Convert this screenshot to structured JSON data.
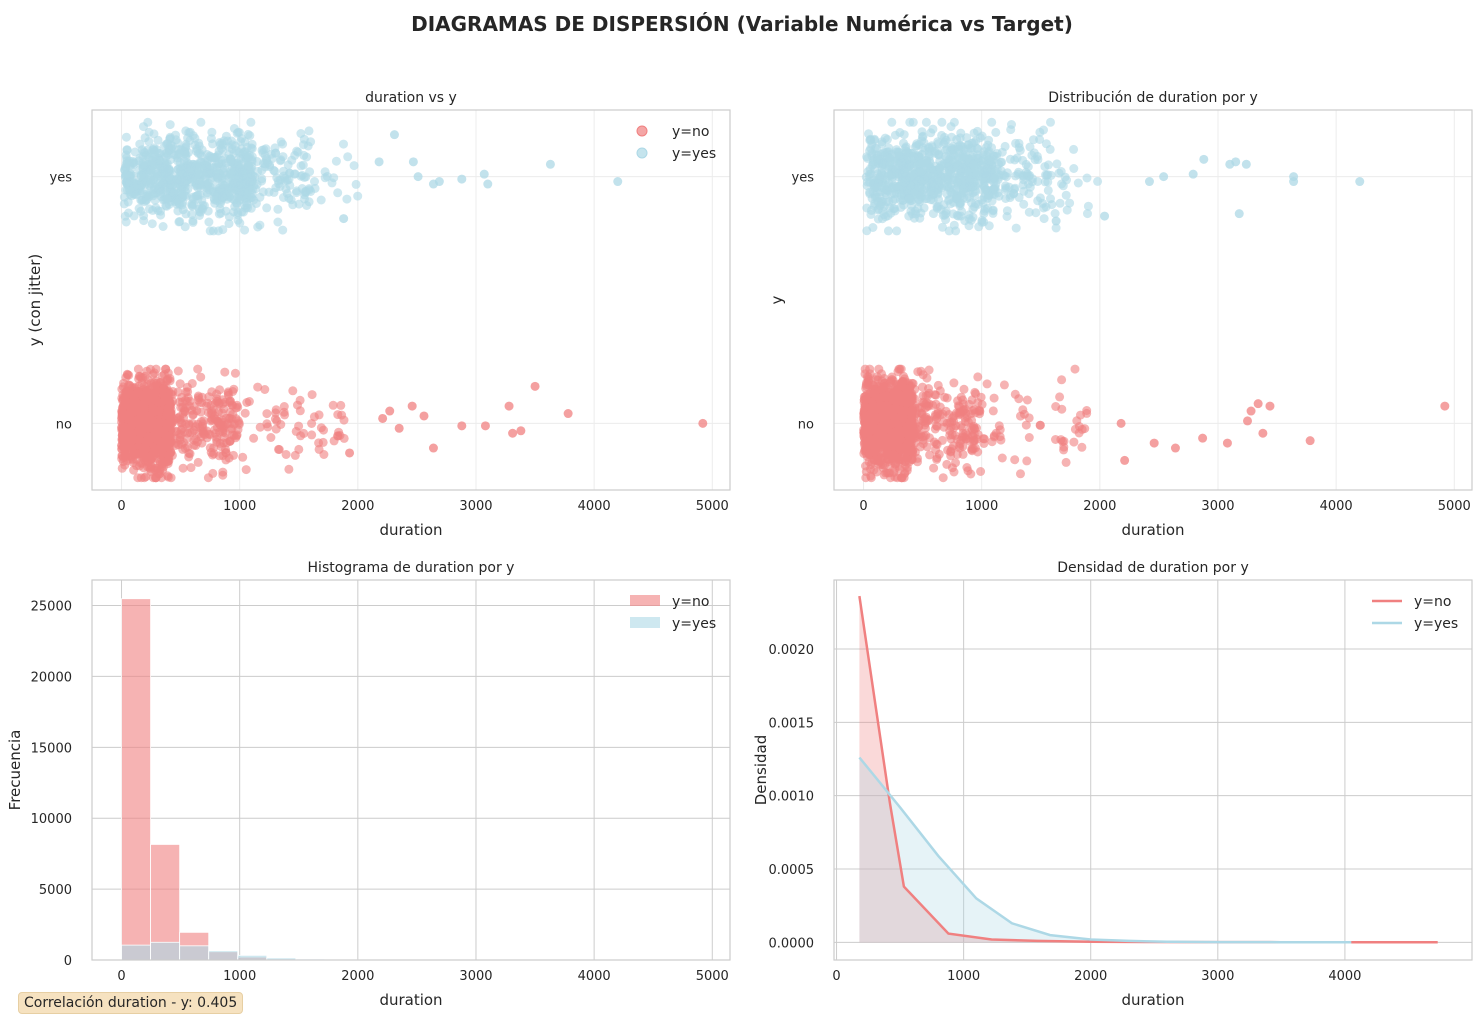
{
  "figure": {
    "title": "DIAGRAMAS DE DISPERSIÓN (Variable Numérica vs Target)",
    "correlation_note": "Correlación duration - y: 0.405"
  },
  "colors": {
    "no": "#f08080",
    "yes": "#add8e6",
    "grid": "#e6e6e6",
    "axis": "#cccccc",
    "text": "#262626"
  },
  "chart_data": [
    {
      "id": "scatter_jitter",
      "type": "scatter",
      "title": "duration vs y",
      "xlabel": "duration",
      "ylabel": "y (con jitter)",
      "xlim": [
        -250,
        5150
      ],
      "ylim": [
        -0.27,
        1.27
      ],
      "xticks": [
        0,
        1000,
        2000,
        3000,
        4000,
        5000
      ],
      "yticks": [
        {
          "value": 0,
          "label": "no"
        },
        {
          "value": 1,
          "label": "yes"
        }
      ],
      "legend": {
        "position": "top-right",
        "entries": [
          "y=no",
          "y=yes"
        ]
      },
      "series": [
        {
          "name": "y=no",
          "key": "no",
          "y_center": 0,
          "outliers": [
            [
              3500,
              0.15
            ],
            [
              3780,
              0.04
            ],
            [
              4920,
              0.0
            ],
            [
              3280,
              0.07
            ],
            [
              3380,
              -0.03
            ],
            [
              3310,
              -0.04
            ],
            [
              2880,
              -0.01
            ],
            [
              3080,
              -0.01
            ],
            [
              2640,
              -0.1
            ],
            [
              2460,
              0.07
            ],
            [
              2560,
              0.03
            ],
            [
              2350,
              -0.02
            ],
            [
              1930,
              -0.12
            ],
            [
              2210,
              0.02
            ],
            [
              2270,
              0.05
            ]
          ]
        },
        {
          "name": "y=yes",
          "key": "yes",
          "y_center": 1,
          "outliers": [
            [
              3630,
              1.05
            ],
            [
              4200,
              0.98
            ],
            [
              3100,
              0.97
            ],
            [
              2880,
              0.99
            ],
            [
              3070,
              1.01
            ],
            [
              2690,
              0.98
            ],
            [
              2310,
              1.17
            ],
            [
              2470,
              1.06
            ],
            [
              2640,
              0.97
            ],
            [
              2510,
              1.0
            ],
            [
              1880,
              0.83
            ],
            [
              2180,
              1.06
            ]
          ]
        }
      ]
    },
    {
      "id": "scatter_strip",
      "type": "scatter",
      "title": "Distribución de duration por y",
      "xlabel": "duration",
      "ylabel": "y",
      "xlim": [
        -250,
        5150
      ],
      "ylim": [
        -0.27,
        1.27
      ],
      "xticks": [
        0,
        1000,
        2000,
        3000,
        4000,
        5000
      ],
      "yticks": [
        {
          "value": 0,
          "label": "no"
        },
        {
          "value": 1,
          "label": "yes"
        }
      ],
      "series": [
        {
          "name": "y=no",
          "key": "no",
          "y_center": 0,
          "outliers": [
            [
              4920,
              0.07
            ],
            [
              3780,
              -0.07
            ],
            [
              3440,
              0.07
            ],
            [
              3340,
              0.08
            ],
            [
              3280,
              0.05
            ],
            [
              3250,
              0.01
            ],
            [
              3380,
              -0.04
            ],
            [
              2870,
              -0.06
            ],
            [
              3080,
              -0.08
            ],
            [
              2640,
              -0.1
            ],
            [
              2460,
              -0.08
            ],
            [
              2210,
              -0.15
            ],
            [
              2180,
              0.0
            ]
          ]
        },
        {
          "name": "y=yes",
          "key": "yes",
          "y_center": 1,
          "outliers": [
            [
              4200,
              0.98
            ],
            [
              3640,
              1.0
            ],
            [
              3640,
              0.98
            ],
            [
              3240,
              1.05
            ],
            [
              3150,
              1.06
            ],
            [
              2880,
              1.07
            ],
            [
              3100,
              1.05
            ],
            [
              3180,
              0.85
            ],
            [
              2790,
              1.01
            ],
            [
              2540,
              1.0
            ],
            [
              2420,
              0.98
            ],
            [
              2040,
              0.84
            ],
            [
              1630,
              0.82
            ]
          ]
        }
      ]
    },
    {
      "id": "histogram",
      "type": "bar",
      "title": "Histograma de duration por y",
      "xlabel": "duration",
      "ylabel": "Frecuencia",
      "xlim": [
        -250,
        5150
      ],
      "ylim": [
        0,
        26800
      ],
      "xticks": [
        0,
        1000,
        2000,
        3000,
        4000,
        5000
      ],
      "yticks": [
        0,
        5000,
        10000,
        15000,
        20000,
        25000
      ],
      "bin_width": 245.9,
      "bin_start": 0,
      "legend": {
        "position": "top-right",
        "entries": [
          "y=no",
          "y=yes"
        ]
      },
      "series": [
        {
          "name": "y=no",
          "key": "no",
          "values": [
            25480,
            8150,
            1950,
            580,
            200,
            70,
            30,
            15,
            8,
            5,
            3,
            2,
            1,
            1,
            1,
            0,
            0,
            0,
            0,
            1
          ]
        },
        {
          "name": "y=yes",
          "key": "yes",
          "values": [
            1050,
            1250,
            1000,
            650,
            330,
            150,
            70,
            35,
            15,
            8,
            4,
            2,
            1,
            1,
            0,
            1,
            0,
            1,
            0,
            0
          ]
        }
      ]
    },
    {
      "id": "density",
      "type": "area",
      "title": "Densidad de duration por y",
      "xlabel": "duration",
      "ylabel": "Densidad",
      "xlim": [
        -20,
        5000
      ],
      "ylim": [
        -0.00012,
        0.00247
      ],
      "xticks": [
        0,
        1000,
        2000,
        3000,
        4000
      ],
      "yticks": [
        {
          "value": 0,
          "label": "0.0000"
        },
        {
          "value": 0.0005,
          "label": "0.0005"
        },
        {
          "value": 0.001,
          "label": "0.0010"
        },
        {
          "value": 0.0015,
          "label": "0.0015"
        },
        {
          "value": 0.002,
          "label": "0.0020"
        }
      ],
      "legend": {
        "position": "top-right",
        "entries": [
          "y=no",
          "y=yes"
        ]
      },
      "series": [
        {
          "name": "y=no",
          "key": "no",
          "x": [
            180,
            420,
            530,
            880,
            1220,
            1580,
            2000,
            2500,
            3000,
            3500,
            4000,
            4730
          ],
          "y": [
            0.00236,
            0.00095,
            0.00038,
            6e-05,
            2e-05,
            1e-05,
            5e-06,
            3e-06,
            2e-06,
            1e-06,
            1e-06,
            1e-06
          ]
        },
        {
          "name": "y=yes",
          "key": "yes",
          "x": [
            180,
            500,
            800,
            1100,
            1380,
            1680,
            2000,
            2300,
            2600,
            3000,
            3500,
            4050
          ],
          "y": [
            0.00126,
            0.00092,
            0.00059,
            0.0003,
            0.00013,
            5e-05,
            2e-05,
            1e-05,
            5e-06,
            2e-06,
            1e-06,
            1e-06
          ]
        }
      ]
    }
  ]
}
